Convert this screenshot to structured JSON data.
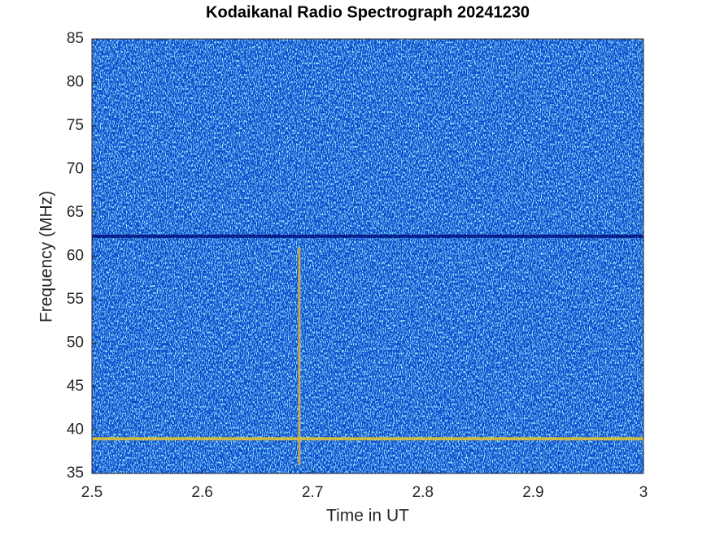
{
  "chart_data": {
    "type": "spectrogram",
    "title": "Kodaikanal Radio Spectrograph  20241230",
    "xlabel": "Time in UT",
    "ylabel": "Frequency (MHz)",
    "xlim": [
      2.5,
      3
    ],
    "ylim": [
      35,
      85
    ],
    "xticks": [
      2.5,
      2.6,
      2.7,
      2.8,
      2.9,
      3
    ],
    "yticks": [
      35,
      40,
      45,
      50,
      55,
      60,
      65,
      70,
      75,
      80,
      85
    ],
    "background_color": "#1750d0",
    "bands": [
      {
        "y": 39,
        "color": "#e6c430"
      },
      {
        "y": 62.3,
        "color": "#00127e"
      }
    ],
    "burst": {
      "x": 2.688,
      "ylim": [
        36,
        61
      ],
      "color": "#d8b040"
    }
  }
}
